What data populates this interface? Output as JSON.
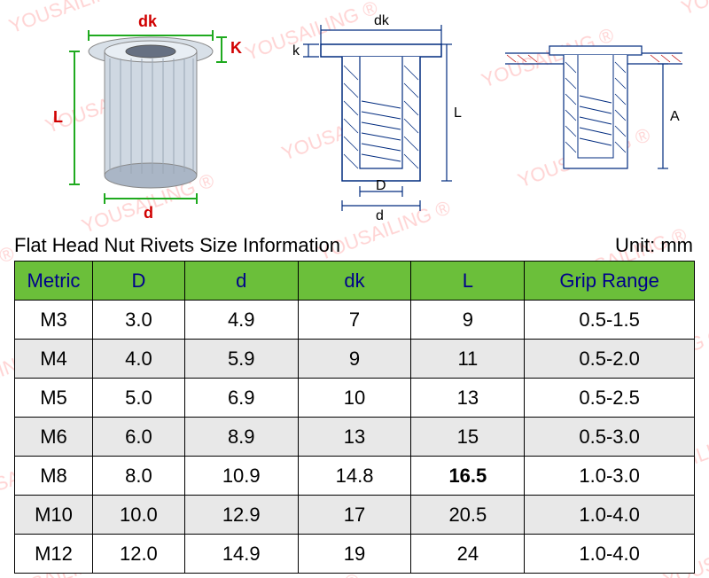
{
  "title": "Flat Head Nut Rivets Size Information",
  "unit_label": "Unit: mm",
  "watermark_text": "YOUSAILING ®",
  "watermark_color": "#ff8080",
  "diagram": {
    "photo_labels": {
      "dk": "dk",
      "K": "K",
      "L": "L",
      "d": "d"
    },
    "schematic_labels": {
      "dk": "dk",
      "k": "k",
      "D": "D",
      "d": "d",
      "L": "L",
      "A": "A"
    },
    "label_color": "#d00000",
    "line_color": "#002b7f"
  },
  "table": {
    "header_bg": "#6bbf3a",
    "header_fg": "#00008b",
    "row_alt_bg": "#e8e8e8",
    "columns": [
      "Metric",
      "D",
      "d",
      "dk",
      "L",
      "Grip Range"
    ],
    "rows": [
      {
        "metric": "M3",
        "D": "3.0",
        "d": "4.9",
        "dk": "7",
        "L": "9",
        "grip": "0.5-1.5",
        "bold_L": false
      },
      {
        "metric": "M4",
        "D": "4.0",
        "d": "5.9",
        "dk": "9",
        "L": "11",
        "grip": "0.5-2.0",
        "bold_L": false
      },
      {
        "metric": "M5",
        "D": "5.0",
        "d": "6.9",
        "dk": "10",
        "L": "13",
        "grip": "0.5-2.5",
        "bold_L": false
      },
      {
        "metric": "M6",
        "D": "6.0",
        "d": "8.9",
        "dk": "13",
        "L": "15",
        "grip": "0.5-3.0",
        "bold_L": false
      },
      {
        "metric": "M8",
        "D": "8.0",
        "d": "10.9",
        "dk": "14.8",
        "L": "16.5",
        "grip": "1.0-3.0",
        "bold_L": true
      },
      {
        "metric": "M10",
        "D": "10.0",
        "d": "12.9",
        "dk": "17",
        "L": "20.5",
        "grip": "1.0-4.0",
        "bold_L": false
      },
      {
        "metric": "M12",
        "D": "12.0",
        "d": "14.9",
        "dk": "19",
        "L": "24",
        "grip": "1.0-4.0",
        "bold_L": false
      }
    ]
  }
}
